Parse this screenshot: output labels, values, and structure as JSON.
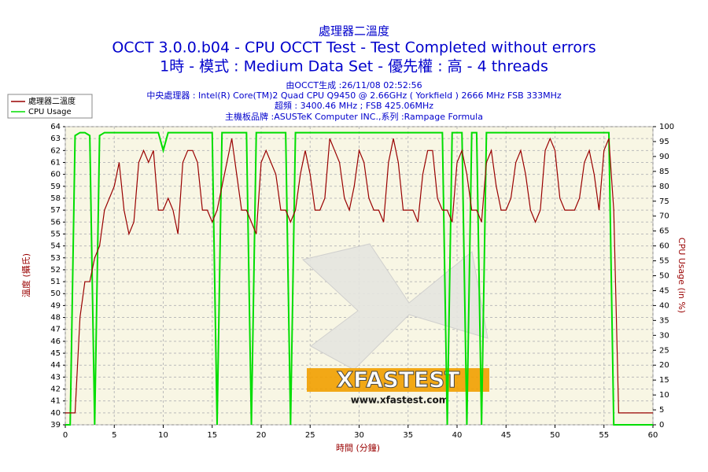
{
  "chart_data": {
    "type": "line",
    "title": "處理器二溫度",
    "subtitle": "OCCT 3.0.0.b04 - CPU OCCT Test - Test Completed without errors",
    "subtitle2": "1時 - 模式 : Medium Data Set - 優先權 : 高 - 4 threads",
    "info": [
      "由OCCT生成 :26/11/08 02:52:56",
      "中央處理器 : Intel(R) Core(TM)2 Quad CPU Q9450 @ 2.66GHz ( Yorkfield ) 2666 MHz FSB 333MHz",
      "超頻 : 3400.46 MHz ; FSB 425.06MHz",
      "主機板品牌 :ASUSTeK Computer INC.,系列 :Rampage Formula"
    ],
    "xlabel": "時間 (分鐘)",
    "ylabel": "溫度 (攝氏)",
    "y2label": "CPU Usage (in %)",
    "watermark": "XFASTEST",
    "watermark_url": "www.xfastest.com",
    "legend": "top-left",
    "grid": true,
    "x": [
      0,
      0.5,
      1,
      1.5,
      2,
      2.5,
      3,
      3.5,
      4,
      4.5,
      5,
      5.5,
      6,
      6.5,
      7,
      7.5,
      8,
      8.5,
      9,
      9.5,
      10,
      10.5,
      11,
      11.5,
      12,
      12.5,
      13,
      13.5,
      14,
      14.5,
      15,
      15.5,
      16,
      16.5,
      17,
      17.5,
      18,
      18.5,
      19,
      19.5,
      20,
      20.5,
      21,
      21.5,
      22,
      22.5,
      23,
      23.5,
      24,
      24.5,
      25,
      25.5,
      26,
      26.5,
      27,
      27.5,
      28,
      28.5,
      29,
      29.5,
      30,
      30.5,
      31,
      31.5,
      32,
      32.5,
      33,
      33.5,
      34,
      34.5,
      35,
      35.5,
      36,
      36.5,
      37,
      37.5,
      38,
      38.5,
      39,
      39.5,
      40,
      40.5,
      41,
      41.5,
      42,
      42.5,
      43,
      43.5,
      44,
      44.5,
      45,
      45.5,
      46,
      46.5,
      47,
      47.5,
      48,
      48.5,
      49,
      49.5,
      50,
      50.5,
      51,
      51.5,
      52,
      52.5,
      53,
      53.5,
      54,
      54.5,
      55,
      55.5,
      56,
      56.5,
      57,
      57.5,
      58,
      58.5,
      59,
      59.5,
      60
    ],
    "series": [
      {
        "name": "處理器二溫度",
        "color": "#990000",
        "axis": "y",
        "values": [
          40,
          40,
          40,
          48,
          51,
          51,
          53,
          54,
          57,
          58,
          59,
          61,
          57,
          55,
          56,
          61,
          62,
          61,
          62,
          57,
          57,
          58,
          57,
          55,
          61,
          62,
          62,
          61,
          57,
          57,
          56,
          57,
          59,
          61,
          63,
          60,
          57,
          57,
          56,
          55,
          61,
          62,
          61,
          60,
          57,
          57,
          56,
          57,
          60,
          62,
          60,
          57,
          57,
          58,
          63,
          62,
          61,
          58,
          57,
          59,
          62,
          61,
          58,
          57,
          57,
          56,
          61,
          63,
          61,
          57,
          57,
          57,
          56,
          60,
          62,
          62,
          58,
          57,
          57,
          56,
          61,
          62,
          60,
          57,
          57,
          56,
          61,
          62,
          59,
          57,
          57,
          58,
          61,
          62,
          60,
          57,
          56,
          57,
          62,
          63,
          62,
          58,
          57,
          57,
          57,
          58,
          61,
          62,
          60,
          57,
          62,
          63,
          57,
          40,
          40,
          40,
          40,
          40,
          40,
          40,
          40
        ]
      },
      {
        "name": "CPU Usage",
        "color": "#00dd00",
        "axis": "y2",
        "values": [
          0,
          0,
          97,
          98,
          98,
          97,
          0,
          97,
          98,
          98,
          98,
          98,
          98,
          98,
          98,
          98,
          98,
          98,
          98,
          98,
          92,
          98,
          98,
          98,
          98,
          98,
          98,
          98,
          98,
          98,
          98,
          0,
          98,
          98,
          98,
          98,
          98,
          98,
          0,
          98,
          98,
          98,
          98,
          98,
          98,
          98,
          0,
          98,
          98,
          98,
          98,
          98,
          98,
          98,
          98,
          98,
          98,
          98,
          98,
          98,
          98,
          98,
          98,
          98,
          98,
          98,
          98,
          98,
          98,
          98,
          98,
          98,
          98,
          98,
          98,
          98,
          98,
          98,
          0,
          98,
          98,
          98,
          0,
          98,
          98,
          0,
          98,
          98,
          98,
          98,
          98,
          98,
          98,
          98,
          98,
          98,
          98,
          98,
          98,
          98,
          98,
          98,
          98,
          98,
          98,
          98,
          98,
          98,
          98,
          98,
          98,
          98,
          0,
          0,
          0,
          0,
          0,
          0,
          0,
          0,
          0
        ]
      }
    ],
    "xlim": [
      0,
      60
    ],
    "xticks": [
      0,
      5,
      10,
      15,
      20,
      25,
      30,
      35,
      40,
      45,
      50,
      55,
      60
    ],
    "ylim": [
      39,
      64
    ],
    "yticks": [
      39,
      40,
      41,
      42,
      43,
      44,
      45,
      46,
      47,
      48,
      49,
      50,
      51,
      52,
      53,
      54,
      55,
      56,
      57,
      58,
      59,
      60,
      61,
      62,
      63,
      64
    ],
    "y2lim": [
      0,
      100
    ],
    "y2ticks": [
      0,
      5,
      10,
      15,
      20,
      25,
      30,
      35,
      40,
      45,
      50,
      55,
      60,
      65,
      70,
      75,
      80,
      85,
      90,
      95,
      100
    ]
  }
}
